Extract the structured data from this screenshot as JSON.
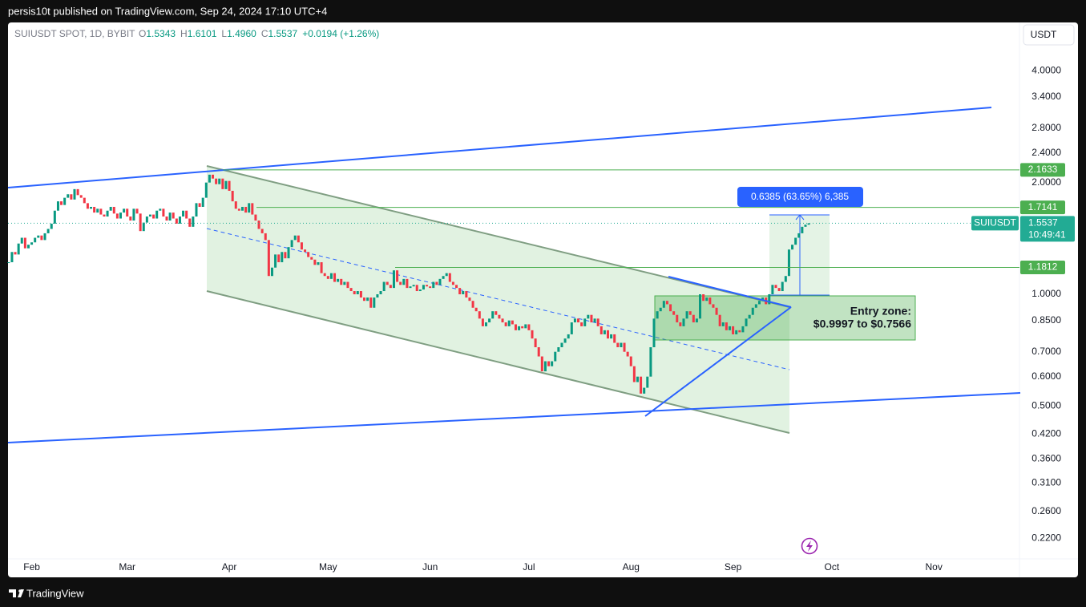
{
  "header": {
    "publisher": "persis10t published on TradingView.com, Sep 24, 2024 17:10 UTC+4"
  },
  "chart_data": {
    "type": "candlestick",
    "symbol": "SUIUSDT SPOT, 1D, BYBIT",
    "legend": [
      {
        "key": "O",
        "value": "1.5343"
      },
      {
        "key": "H",
        "value": "1.6101"
      },
      {
        "key": "L",
        "value": "1.4960"
      },
      {
        "key": "C",
        "value": "1.5537"
      },
      {
        "key": "",
        "value": "+0.0194 (+1.26%)"
      }
    ],
    "currency": "USDT",
    "closes": [
      1.22,
      1.3,
      1.28,
      1.37,
      1.42,
      1.33,
      1.36,
      1.38,
      1.42,
      1.44,
      1.4,
      1.46,
      1.5,
      1.55,
      1.68,
      1.78,
      1.74,
      1.82,
      1.86,
      1.8,
      1.92,
      1.85,
      1.82,
      1.76,
      1.7,
      1.72,
      1.66,
      1.7,
      1.64,
      1.62,
      1.68,
      1.72,
      1.65,
      1.6,
      1.66,
      1.7,
      1.62,
      1.58,
      1.7,
      1.65,
      1.48,
      1.56,
      1.62,
      1.64,
      1.6,
      1.68,
      1.7,
      1.62,
      1.58,
      1.66,
      1.6,
      1.55,
      1.62,
      1.68,
      1.6,
      1.52,
      1.62,
      1.76,
      1.72,
      1.82,
      2.0,
      2.1,
      2.05,
      1.98,
      2.05,
      1.92,
      2.02,
      1.9,
      1.78,
      1.7,
      1.68,
      1.72,
      1.66,
      1.76,
      1.64,
      1.58,
      1.5,
      1.46,
      1.4,
      1.12,
      1.18,
      1.28,
      1.22,
      1.3,
      1.25,
      1.34,
      1.4,
      1.44,
      1.38,
      1.32,
      1.3,
      1.26,
      1.24,
      1.2,
      1.22,
      1.14,
      1.12,
      1.1,
      1.14,
      1.08,
      1.1,
      1.06,
      1.08,
      1.04,
      1.02,
      1.0,
      1.02,
      0.98,
      0.96,
      0.98,
      0.92,
      0.98,
      1.0,
      1.02,
      1.08,
      1.06,
      1.04,
      1.16,
      1.08,
      1.06,
      1.1,
      1.04,
      1.05,
      1.06,
      1.02,
      1.03,
      1.06,
      1.05,
      1.04,
      1.08,
      1.06,
      1.1,
      1.12,
      1.14,
      1.08,
      1.06,
      1.04,
      1.0,
      1.02,
      0.98,
      0.96,
      0.92,
      0.9,
      0.86,
      0.82,
      0.84,
      0.86,
      0.9,
      0.88,
      0.86,
      0.84,
      0.82,
      0.85,
      0.83,
      0.8,
      0.82,
      0.81,
      0.83,
      0.8,
      0.76,
      0.72,
      0.68,
      0.62,
      0.66,
      0.64,
      0.66,
      0.7,
      0.72,
      0.74,
      0.76,
      0.78,
      0.84,
      0.86,
      0.84,
      0.82,
      0.86,
      0.88,
      0.84,
      0.86,
      0.82,
      0.78,
      0.8,
      0.76,
      0.78,
      0.74,
      0.72,
      0.74,
      0.7,
      0.68,
      0.64,
      0.58,
      0.6,
      0.54,
      0.56,
      0.6,
      0.72,
      0.86,
      0.9,
      0.92,
      0.96,
      0.94,
      0.9,
      0.88,
      0.84,
      0.82,
      0.86,
      0.9,
      0.88,
      0.84,
      0.86,
      1.0,
      0.96,
      0.98,
      0.94,
      0.92,
      0.88,
      0.82,
      0.84,
      0.8,
      0.82,
      0.78,
      0.8,
      0.79,
      0.82,
      0.86,
      0.88,
      0.92,
      0.94,
      0.96,
      0.98,
      0.94,
      1.0,
      1.06,
      1.04,
      1.02,
      1.08,
      1.12,
      1.32,
      1.36,
      1.42,
      1.46,
      1.52,
      1.54,
      1.5537
    ],
    "up_color": "#089981",
    "down_color": "#f23645",
    "log_scale": true,
    "ylim": [
      0.1956,
      5.4
    ],
    "yticks": [
      {
        "value": 4,
        "label": "4.0000"
      },
      {
        "value": 3.4,
        "label": "3.4000"
      },
      {
        "value": 2.8,
        "label": "2.8000"
      },
      {
        "value": 2.4,
        "label": "2.4000"
      },
      {
        "value": 2,
        "label": "2.0000"
      },
      {
        "value": 1,
        "label": "1.0000"
      },
      {
        "value": 0.85,
        "label": "0.8500"
      },
      {
        "value": 0.7,
        "label": "0.7000"
      },
      {
        "value": 0.6,
        "label": "0.6000"
      },
      {
        "value": 0.5,
        "label": "0.5000"
      },
      {
        "value": 0.42,
        "label": "0.4200"
      },
      {
        "value": 0.36,
        "label": "0.3600"
      },
      {
        "value": 0.31,
        "label": "0.3100"
      },
      {
        "value": 0.26,
        "label": "0.2600"
      },
      {
        "value": 0.22,
        "label": "0.2200"
      }
    ],
    "xlim": [
      -0.2,
      307
    ],
    "xticks": [
      {
        "value": 7,
        "label": "Feb"
      },
      {
        "value": 36,
        "label": "Mar"
      },
      {
        "value": 67,
        "label": "Apr"
      },
      {
        "value": 97,
        "label": "May"
      },
      {
        "value": 128,
        "label": "Jun"
      },
      {
        "value": 158,
        "label": "Jul"
      },
      {
        "value": 189,
        "label": "Aug"
      },
      {
        "value": 220,
        "label": "Sep"
      },
      {
        "value": 250,
        "label": "Oct"
      },
      {
        "value": 281,
        "label": "Nov"
      }
    ],
    "levels": [
      2.1633,
      1.7141,
      1.1812
    ],
    "level_color": "#4caf50",
    "last_price": {
      "name": "SUIUSDT",
      "value": 1.5537,
      "countdown": "10:49:41",
      "color": "#22ab94"
    },
    "measure": "0.6385 (63.65%) 6,385",
    "annotation": "Entry zone:",
    "annotation_detail": "$0.9997 to $0.7566"
  },
  "footer": "TradingView"
}
